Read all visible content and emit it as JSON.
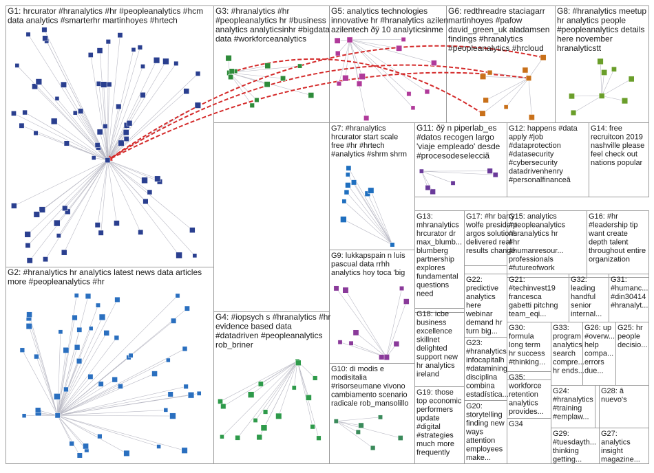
{
  "groups": [
    {
      "id": "G1",
      "lines": [
        "G1: hrcurator #hranalytics #hr #peopleanalytics #hcm",
        "data analytics #smarterhr martinhoyes #hrtech"
      ]
    },
    {
      "id": "G2",
      "lines": [
        "G2: #hranalytics hr analytics latest news data articles",
        "more #peopleanalytics #hr"
      ]
    },
    {
      "id": "G3",
      "lines": [
        "G3: #hranalytics #hr",
        "#peopleanalytics hr #business",
        "analytics analyticsinhr #bigdata",
        "data #workforceanalytics"
      ]
    },
    {
      "id": "G4",
      "lines": [
        "G4: #iopsych s #hranalytics #hr",
        "evidence based data",
        "#datadriven #peopleanalytics",
        "rob_briner"
      ]
    },
    {
      "id": "G5",
      "lines": [
        "G5: analytics technologies",
        "innovative hr #hranalytics azilen",
        "azilentech ðÿ 10 analyticsinme"
      ]
    },
    {
      "id": "G6",
      "lines": [
        "G6: redthreadre staciagarr",
        "martinhoyes #pafow",
        "david_green_uk aladamsen",
        "findings #hranalytics",
        "#peopleanalytics #hrcloud"
      ]
    },
    {
      "id": "G7",
      "lines": [
        "G7: #hranalytics",
        "hrcurator start scale",
        "free #hr #hrtech",
        "#analytics #shrm shrm"
      ]
    },
    {
      "id": "G8",
      "lines": [
        "G8: #hranalytics meetup",
        "hr analytics people",
        "#peopleanalytics details",
        "here november",
        "hranalyticstt"
      ]
    },
    {
      "id": "G9",
      "lines": [
        "G9: lukkapspain n luis",
        "pascual data rrhh",
        "analytics hoy toca 'big"
      ]
    },
    {
      "id": "G10",
      "lines": [
        "G10: di modis e",
        "modisitalia",
        "#risorseumane vivono",
        "cambiamento scenario",
        "radicale rob_mansolillo"
      ]
    },
    {
      "id": "G11",
      "lines": [
        "G11: ðÿ n piperlab_es",
        "#datos recogen largo",
        "'viaje empleado' desde",
        "#procesodeselecciã"
      ]
    },
    {
      "id": "G12",
      "lines": [
        "G12: happens #data",
        "apply #job",
        "#dataprotection",
        "#datasecurity",
        "#cybersecurity",
        "datadrivenhenry",
        "#personalfinanceâ"
      ]
    },
    {
      "id": "G13",
      "lines": [
        "G13:",
        "mhranalytics",
        "hrcurator dr",
        "max_blumb...",
        "blumberg",
        "partnership",
        "explores",
        "fundamental",
        "questions",
        "need"
      ]
    },
    {
      "id": "G14",
      "lines": [
        "G14: free",
        "recruitcon 2019",
        "nashville please",
        "feel check out",
        "nations popular"
      ]
    },
    {
      "id": "G15",
      "lines": [
        "G15: analytics",
        "#peopleanalytics",
        "#hranalytics hr",
        "#hr",
        "#humanresour...",
        "professionals",
        "#futureofwork"
      ]
    },
    {
      "id": "G16",
      "lines": [
        "G16: #hr",
        "#leadership tip",
        "want create",
        "depth talent",
        "throughout entire",
        "organization"
      ]
    },
    {
      "id": "G17",
      "lines": [
        "G17: #hr barry",
        "wolfe president",
        "argos solutions",
        "delivered real",
        "results change"
      ]
    },
    {
      "id": "G18",
      "lines": [
        "G18: icbe",
        "business",
        "excellence",
        "skillnet",
        "delighted",
        "support new",
        "hr analytics",
        "ireland"
      ]
    },
    {
      "id": "G19",
      "lines": [
        "G19: those",
        "top economic",
        "performers",
        "update",
        "#digital",
        "#strategies",
        "much more",
        "frequently"
      ]
    },
    {
      "id": "G20",
      "lines": [
        "G20:",
        "storytelling",
        "finding new",
        "ways",
        "attention",
        "employees",
        "make..."
      ]
    },
    {
      "id": "G21",
      "lines": [
        "G21:",
        "#techinvest19",
        "francesca",
        "gabetti pitchng",
        "team_eqi..."
      ]
    },
    {
      "id": "G22",
      "lines": [
        "G22:",
        "predictive",
        "analytics",
        "here",
        "webinar",
        "demand hr",
        "turn big..."
      ]
    },
    {
      "id": "G23",
      "lines": [
        "G23:",
        "#hranalytics",
        "infocapitalh",
        "#datamining",
        "disciplina",
        "combina",
        "estadística..."
      ]
    },
    {
      "id": "G24",
      "lines": [
        "G24:",
        "#hranalytics",
        "#training",
        "#emplaw..."
      ]
    },
    {
      "id": "G25",
      "lines": [
        "G25: hr",
        "people",
        "decisio..."
      ]
    },
    {
      "id": "G26",
      "lines": [
        "G26: up",
        "#overw...",
        "help",
        "compa...",
        "errors",
        "due..."
      ]
    },
    {
      "id": "G27",
      "lines": [
        "G27:",
        "analytics",
        "insight",
        "magazine..."
      ]
    },
    {
      "id": "G28",
      "lines": [
        "G28: â",
        "nuevo's"
      ]
    },
    {
      "id": "G29",
      "lines": [
        "G29:",
        "#tuesdayth...",
        "thinking",
        "getting..."
      ]
    },
    {
      "id": "G30",
      "lines": [
        "G30:",
        "formula",
        "long term",
        "hr success",
        "#thinking..."
      ]
    },
    {
      "id": "G31",
      "lines": [
        "G31:",
        "#humanc...",
        "#din30414",
        "#hranalyt..."
      ]
    },
    {
      "id": "G32",
      "lines": [
        "G32:",
        "leading",
        "handful",
        "senior",
        "internal..."
      ]
    },
    {
      "id": "G33",
      "lines": [
        "G33:",
        "program",
        "analytics",
        "search",
        "compre...",
        "hr ends..."
      ]
    },
    {
      "id": "G34",
      "lines": [
        "G34"
      ]
    },
    {
      "id": "G35",
      "lines": [
        "G35:",
        "workforce",
        "retention",
        "analytics",
        "provides..."
      ]
    }
  ]
}
